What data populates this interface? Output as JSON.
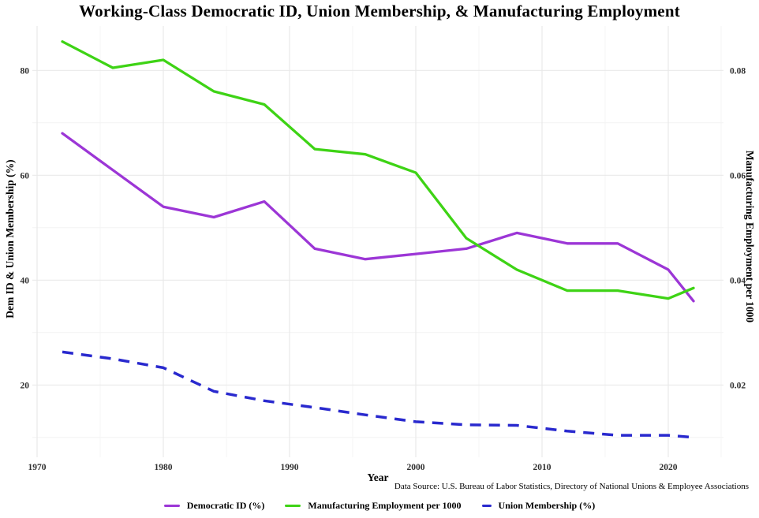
{
  "title": "Working-Class Democratic ID, Union Membership, & Manufacturing Employment",
  "axes": {
    "x_title": "Year",
    "y_left_title": "Dem ID & Union Membership (%)",
    "y_right_title": "Manufacturing Employment per 1000",
    "x_ticks": [
      1970,
      1980,
      1990,
      2000,
      2010,
      2020
    ],
    "y_left_ticks": [
      20,
      40,
      60,
      80
    ],
    "y_right_ticks": [
      "0.02",
      "0.04",
      "0.06",
      "0.08"
    ]
  },
  "caption": "Data Source: U.S. Bureau of Labor Statistics, Directory of National Unions & Employee Associations",
  "colors": {
    "dem": "#9C36D6",
    "manufacturing": "#3ED315",
    "union": "#2929CE",
    "grid_major": "#e9e9e9",
    "grid_minor": "#f4f4f4",
    "tick_text": "#303030"
  },
  "legend": [
    {
      "label": "Democratic ID (%)",
      "color": "#9C36D6",
      "dash": false
    },
    {
      "label": "Manufacturing Employment per 1000",
      "color": "#3ED315",
      "dash": false
    },
    {
      "label": "Union Membership (%)",
      "color": "#2929CE",
      "dash": true
    }
  ],
  "chart_data": {
    "type": "line",
    "x": [
      1972,
      1976,
      1980,
      1984,
      1988,
      1992,
      1996,
      2000,
      2004,
      2008,
      2012,
      2016,
      2020,
      2022
    ],
    "series": [
      {
        "name": "Democratic ID (%)",
        "axis": "left",
        "color": "#9C36D6",
        "style": "solid",
        "values": [
          68,
          61,
          54,
          52,
          55,
          46,
          44,
          45,
          46,
          49,
          47,
          47,
          42,
          36
        ]
      },
      {
        "name": "Manufacturing Employment per 1000",
        "axis": "right",
        "color": "#3ED315",
        "style": "solid",
        "values": [
          0.0855,
          0.0805,
          0.082,
          0.076,
          0.0735,
          0.065,
          0.064,
          0.0605,
          0.048,
          0.042,
          0.038,
          0.038,
          0.0365,
          0.0385
        ]
      },
      {
        "name": "Union Membership (%)",
        "axis": "left",
        "color": "#2929CE",
        "style": "dashed",
        "values": [
          26.3,
          25,
          23.3,
          18.8,
          17,
          15.7,
          14.3,
          13,
          12.4,
          12.3,
          11.2,
          10.4,
          10.4,
          10
        ]
      }
    ],
    "x_range": [
      1969.5,
      2024.5
    ],
    "y_left_range": [
      8,
      88
    ],
    "y_right_range": [
      0.008,
      0.088
    ],
    "grid": true,
    "legend_position": "bottom",
    "x_gridline_step_minor": 5,
    "y_gridline_step_minor": 10
  }
}
